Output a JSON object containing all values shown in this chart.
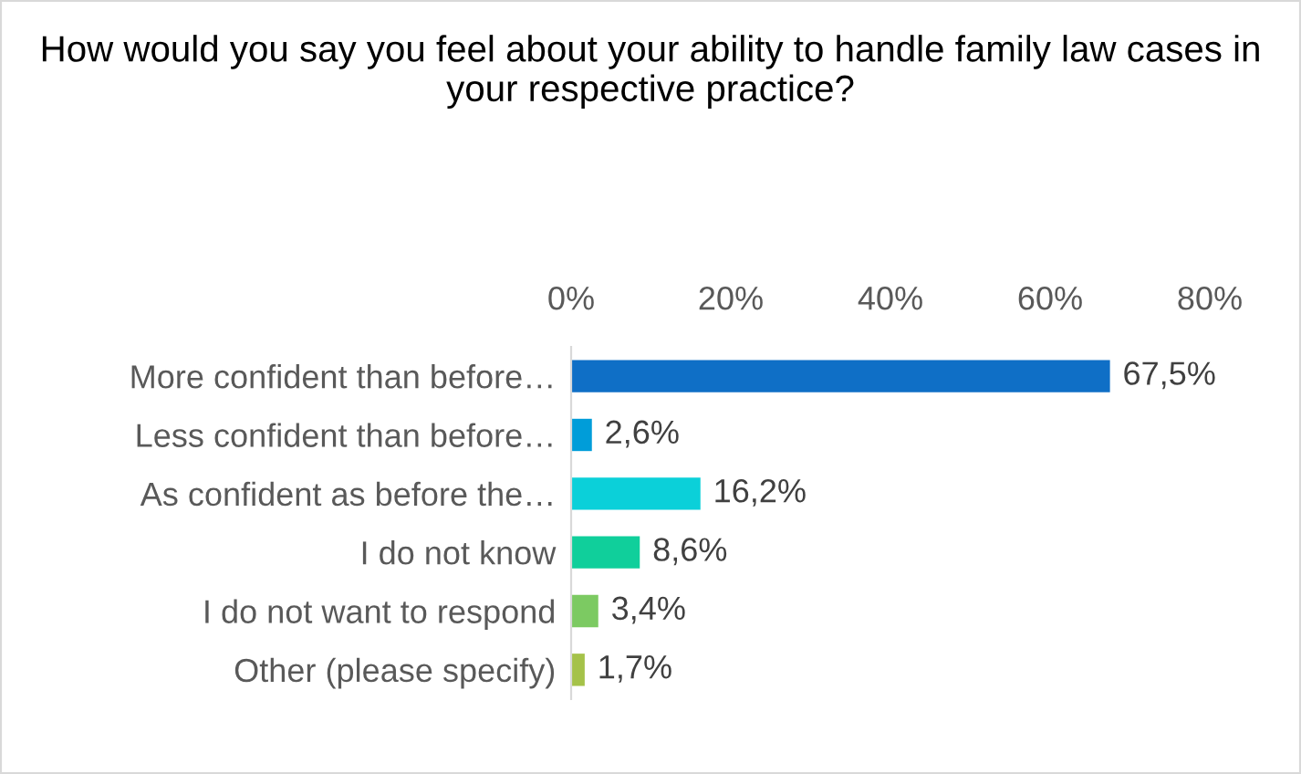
{
  "chart_data": {
    "type": "bar",
    "orientation": "horizontal",
    "title": "How would you say you feel about your ability to handle family law cases in your respective practice?",
    "categories": [
      "More confident than before…",
      "Less confident than before…",
      "As confident as before the…",
      "I do not know",
      "I do not want to respond",
      "Other (please specify)"
    ],
    "values": [
      67.5,
      2.6,
      16.2,
      8.6,
      3.4,
      1.7
    ],
    "colors": [
      "#0f6fc6",
      "#009dd9",
      "#0bd0d9",
      "#10cf9b",
      "#7cca62",
      "#a5c249"
    ],
    "value_labels": [
      "67,5%",
      "2,6%",
      "16,2%",
      "8,6%",
      "3,4%",
      "1,7%"
    ],
    "xlim": [
      0,
      80
    ],
    "xticks": [
      {
        "value": 0,
        "label": "0%"
      },
      {
        "value": 20,
        "label": "20%"
      },
      {
        "value": 40,
        "label": "40%"
      },
      {
        "value": 60,
        "label": "60%"
      },
      {
        "value": 80,
        "label": "80%"
      }
    ],
    "grid": false,
    "legend": false
  }
}
